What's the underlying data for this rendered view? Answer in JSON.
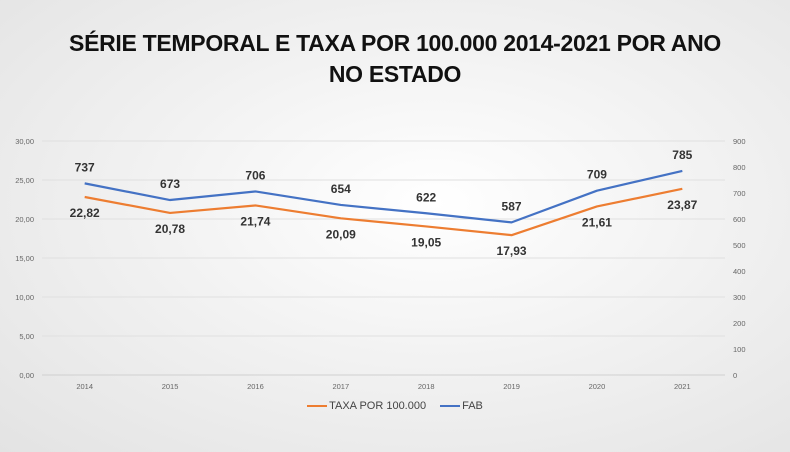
{
  "chart_data": {
    "type": "line",
    "title_line1": "SÉRIE TEMPORAL E TAXA POR 100.000 2014-2021 POR ANO",
    "title_line2": "NO ESTADO",
    "categories": [
      "2014",
      "2015",
      "2016",
      "2017",
      "2018",
      "2019",
      "2020",
      "2021"
    ],
    "series": [
      {
        "name": "TAXA POR 100.000",
        "axis": "left",
        "color": "#ED7D31",
        "values": [
          22.82,
          20.78,
          21.74,
          20.09,
          19.05,
          17.93,
          21.61,
          23.87
        ],
        "labels": [
          "22,82",
          "20,78",
          "21,74",
          "20,09",
          "19,05",
          "17,93",
          "21,61",
          "23,87"
        ]
      },
      {
        "name": "FAB",
        "axis": "right",
        "color": "#4472C4",
        "values": [
          737,
          673,
          706,
          654,
          622,
          587,
          709,
          785
        ],
        "labels": [
          "737",
          "673",
          "706",
          "654",
          "622",
          "587",
          "709",
          "785"
        ]
      }
    ],
    "y_left": {
      "range": [
        0,
        30
      ],
      "ticks": [
        "0,00",
        "5,00",
        "10,00",
        "15,00",
        "20,00",
        "25,00",
        "30,00"
      ]
    },
    "y_right": {
      "range": [
        0,
        900
      ],
      "ticks": [
        "0",
        "100",
        "200",
        "300",
        "400",
        "500",
        "600",
        "700",
        "800",
        "900"
      ]
    },
    "grid": true,
    "legend_position": "bottom"
  }
}
